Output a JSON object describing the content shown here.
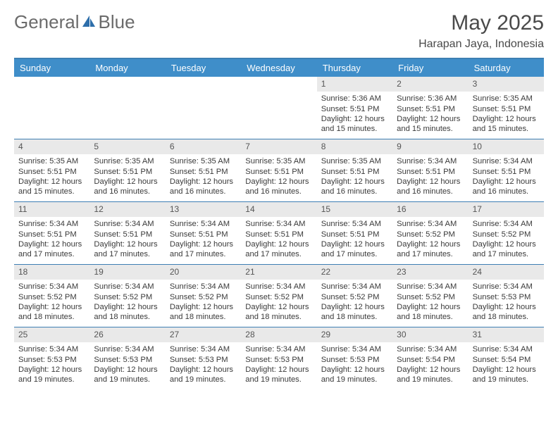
{
  "brand": {
    "part1": "General",
    "part2": "Blue"
  },
  "title": "May 2025",
  "subtitle": "Harapan Jaya, Indonesia",
  "colors": {
    "header_bg": "#3f8ec9",
    "header_border": "#3e7fb3",
    "daynum_bg": "#e9e9e9",
    "text": "#3a3a3a",
    "logo_icon": "#2d6eaa"
  },
  "day_names": [
    "Sunday",
    "Monday",
    "Tuesday",
    "Wednesday",
    "Thursday",
    "Friday",
    "Saturday"
  ],
  "weeks": [
    [
      null,
      null,
      null,
      null,
      {
        "n": "1",
        "sr": "Sunrise: 5:36 AM",
        "ss": "Sunset: 5:51 PM",
        "dl1": "Daylight: 12 hours",
        "dl2": "and 15 minutes."
      },
      {
        "n": "2",
        "sr": "Sunrise: 5:36 AM",
        "ss": "Sunset: 5:51 PM",
        "dl1": "Daylight: 12 hours",
        "dl2": "and 15 minutes."
      },
      {
        "n": "3",
        "sr": "Sunrise: 5:35 AM",
        "ss": "Sunset: 5:51 PM",
        "dl1": "Daylight: 12 hours",
        "dl2": "and 15 minutes."
      }
    ],
    [
      {
        "n": "4",
        "sr": "Sunrise: 5:35 AM",
        "ss": "Sunset: 5:51 PM",
        "dl1": "Daylight: 12 hours",
        "dl2": "and 15 minutes."
      },
      {
        "n": "5",
        "sr": "Sunrise: 5:35 AM",
        "ss": "Sunset: 5:51 PM",
        "dl1": "Daylight: 12 hours",
        "dl2": "and 16 minutes."
      },
      {
        "n": "6",
        "sr": "Sunrise: 5:35 AM",
        "ss": "Sunset: 5:51 PM",
        "dl1": "Daylight: 12 hours",
        "dl2": "and 16 minutes."
      },
      {
        "n": "7",
        "sr": "Sunrise: 5:35 AM",
        "ss": "Sunset: 5:51 PM",
        "dl1": "Daylight: 12 hours",
        "dl2": "and 16 minutes."
      },
      {
        "n": "8",
        "sr": "Sunrise: 5:35 AM",
        "ss": "Sunset: 5:51 PM",
        "dl1": "Daylight: 12 hours",
        "dl2": "and 16 minutes."
      },
      {
        "n": "9",
        "sr": "Sunrise: 5:34 AM",
        "ss": "Sunset: 5:51 PM",
        "dl1": "Daylight: 12 hours",
        "dl2": "and 16 minutes."
      },
      {
        "n": "10",
        "sr": "Sunrise: 5:34 AM",
        "ss": "Sunset: 5:51 PM",
        "dl1": "Daylight: 12 hours",
        "dl2": "and 16 minutes."
      }
    ],
    [
      {
        "n": "11",
        "sr": "Sunrise: 5:34 AM",
        "ss": "Sunset: 5:51 PM",
        "dl1": "Daylight: 12 hours",
        "dl2": "and 17 minutes."
      },
      {
        "n": "12",
        "sr": "Sunrise: 5:34 AM",
        "ss": "Sunset: 5:51 PM",
        "dl1": "Daylight: 12 hours",
        "dl2": "and 17 minutes."
      },
      {
        "n": "13",
        "sr": "Sunrise: 5:34 AM",
        "ss": "Sunset: 5:51 PM",
        "dl1": "Daylight: 12 hours",
        "dl2": "and 17 minutes."
      },
      {
        "n": "14",
        "sr": "Sunrise: 5:34 AM",
        "ss": "Sunset: 5:51 PM",
        "dl1": "Daylight: 12 hours",
        "dl2": "and 17 minutes."
      },
      {
        "n": "15",
        "sr": "Sunrise: 5:34 AM",
        "ss": "Sunset: 5:51 PM",
        "dl1": "Daylight: 12 hours",
        "dl2": "and 17 minutes."
      },
      {
        "n": "16",
        "sr": "Sunrise: 5:34 AM",
        "ss": "Sunset: 5:52 PM",
        "dl1": "Daylight: 12 hours",
        "dl2": "and 17 minutes."
      },
      {
        "n": "17",
        "sr": "Sunrise: 5:34 AM",
        "ss": "Sunset: 5:52 PM",
        "dl1": "Daylight: 12 hours",
        "dl2": "and 17 minutes."
      }
    ],
    [
      {
        "n": "18",
        "sr": "Sunrise: 5:34 AM",
        "ss": "Sunset: 5:52 PM",
        "dl1": "Daylight: 12 hours",
        "dl2": "and 18 minutes."
      },
      {
        "n": "19",
        "sr": "Sunrise: 5:34 AM",
        "ss": "Sunset: 5:52 PM",
        "dl1": "Daylight: 12 hours",
        "dl2": "and 18 minutes."
      },
      {
        "n": "20",
        "sr": "Sunrise: 5:34 AM",
        "ss": "Sunset: 5:52 PM",
        "dl1": "Daylight: 12 hours",
        "dl2": "and 18 minutes."
      },
      {
        "n": "21",
        "sr": "Sunrise: 5:34 AM",
        "ss": "Sunset: 5:52 PM",
        "dl1": "Daylight: 12 hours",
        "dl2": "and 18 minutes."
      },
      {
        "n": "22",
        "sr": "Sunrise: 5:34 AM",
        "ss": "Sunset: 5:52 PM",
        "dl1": "Daylight: 12 hours",
        "dl2": "and 18 minutes."
      },
      {
        "n": "23",
        "sr": "Sunrise: 5:34 AM",
        "ss": "Sunset: 5:52 PM",
        "dl1": "Daylight: 12 hours",
        "dl2": "and 18 minutes."
      },
      {
        "n": "24",
        "sr": "Sunrise: 5:34 AM",
        "ss": "Sunset: 5:53 PM",
        "dl1": "Daylight: 12 hours",
        "dl2": "and 18 minutes."
      }
    ],
    [
      {
        "n": "25",
        "sr": "Sunrise: 5:34 AM",
        "ss": "Sunset: 5:53 PM",
        "dl1": "Daylight: 12 hours",
        "dl2": "and 19 minutes."
      },
      {
        "n": "26",
        "sr": "Sunrise: 5:34 AM",
        "ss": "Sunset: 5:53 PM",
        "dl1": "Daylight: 12 hours",
        "dl2": "and 19 minutes."
      },
      {
        "n": "27",
        "sr": "Sunrise: 5:34 AM",
        "ss": "Sunset: 5:53 PM",
        "dl1": "Daylight: 12 hours",
        "dl2": "and 19 minutes."
      },
      {
        "n": "28",
        "sr": "Sunrise: 5:34 AM",
        "ss": "Sunset: 5:53 PM",
        "dl1": "Daylight: 12 hours",
        "dl2": "and 19 minutes."
      },
      {
        "n": "29",
        "sr": "Sunrise: 5:34 AM",
        "ss": "Sunset: 5:53 PM",
        "dl1": "Daylight: 12 hours",
        "dl2": "and 19 minutes."
      },
      {
        "n": "30",
        "sr": "Sunrise: 5:34 AM",
        "ss": "Sunset: 5:54 PM",
        "dl1": "Daylight: 12 hours",
        "dl2": "and 19 minutes."
      },
      {
        "n": "31",
        "sr": "Sunrise: 5:34 AM",
        "ss": "Sunset: 5:54 PM",
        "dl1": "Daylight: 12 hours",
        "dl2": "and 19 minutes."
      }
    ]
  ]
}
